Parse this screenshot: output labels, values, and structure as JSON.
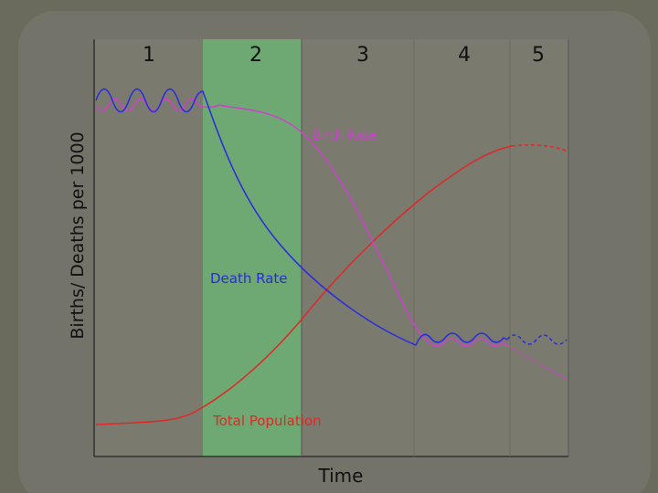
{
  "stages": [
    "1",
    "2",
    "3",
    "4",
    "5"
  ],
  "y_axis_label": "Births/ Deaths per 1000",
  "x_axis_label": "Time",
  "curves": {
    "birth_rate": "Birth Rate",
    "death_rate": "Death Rate",
    "total_population": "Total Population"
  }
}
